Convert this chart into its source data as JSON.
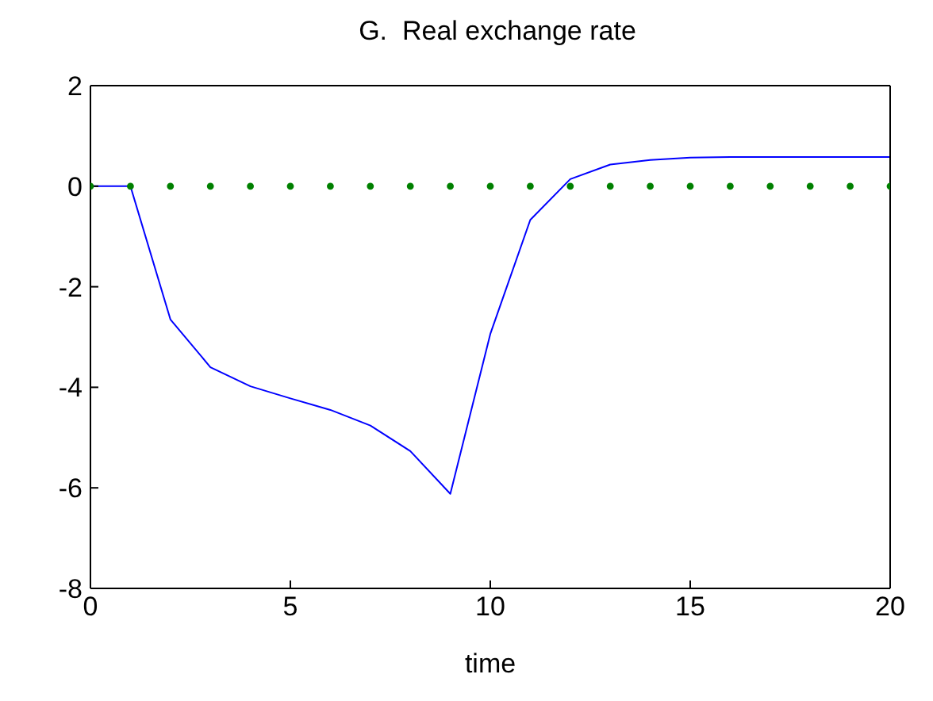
{
  "chart_data": {
    "type": "line",
    "title": "G.  Real exchange rate",
    "xlabel": "time",
    "x": [
      0,
      1,
      2,
      3,
      4,
      5,
      6,
      7,
      8,
      9,
      10,
      11,
      12,
      13,
      14,
      15,
      16,
      17,
      18,
      19,
      20
    ],
    "series": [
      {
        "color": "#0000ff",
        "marker": "none",
        "line_style": "solid",
        "values": [
          0,
          0,
          -2.65,
          -3.6,
          -3.98,
          -4.22,
          -4.45,
          -4.76,
          -5.27,
          -6.12,
          -2.94,
          -0.67,
          0.14,
          0.43,
          0.52,
          0.57,
          0.58,
          0.58,
          0.58,
          0.58,
          0.58
        ]
      },
      {
        "type": "scatter",
        "color": "#008000",
        "marker": "circle",
        "values": [
          0,
          0,
          0,
          0,
          0,
          0,
          0,
          0,
          0,
          0,
          0,
          0,
          0,
          0,
          0,
          0,
          0,
          0,
          0,
          0,
          0
        ]
      }
    ],
    "xlim": [
      0,
      20
    ],
    "xticks": [
      0,
      5,
      10,
      15,
      20
    ],
    "ylim": [
      -8,
      2
    ],
    "yticks": [
      -8,
      -6,
      -4,
      -2,
      0,
      2
    ],
    "grid": false
  }
}
